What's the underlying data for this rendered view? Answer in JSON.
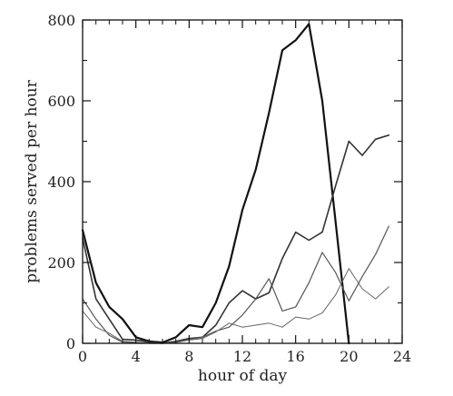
{
  "chart_data": {
    "type": "line",
    "xlabel": "hour of day",
    "ylabel": "problems served per hour",
    "xlim": [
      0,
      24
    ],
    "ylim": [
      0,
      800
    ],
    "x_ticks": [
      0,
      4,
      8,
      12,
      16,
      20,
      24
    ],
    "y_ticks": [
      0,
      200,
      400,
      600,
      800
    ],
    "x_tick_labels": [
      "0",
      "4",
      "8",
      "12",
      "16",
      "20",
      "24"
    ],
    "y_tick_labels": [
      "0",
      "200",
      "400",
      "600",
      "800"
    ],
    "grid": false,
    "legend": "none",
    "x": [
      0,
      1,
      2,
      3,
      4,
      5,
      6,
      7,
      8,
      9,
      10,
      11,
      12,
      13,
      14,
      15,
      16,
      17,
      18,
      19,
      20,
      21,
      22,
      23
    ],
    "series": [
      {
        "color": "#111111",
        "stroke_width": 2.2,
        "values": [
          280,
          150,
          90,
          60,
          15,
          5,
          2,
          15,
          45,
          40,
          100,
          190,
          330,
          430,
          570,
          725,
          750,
          790,
          600,
          300,
          0,
          null,
          null,
          null
        ]
      },
      {
        "color": "#333333",
        "stroke_width": 1.6,
        "values": [
          260,
          110,
          60,
          10,
          8,
          3,
          0,
          5,
          12,
          15,
          45,
          100,
          130,
          110,
          125,
          210,
          275,
          255,
          275,
          390,
          500,
          465,
          505,
          515
        ]
      },
      {
        "color": "#555555",
        "stroke_width": 1.2,
        "values": [
          110,
          60,
          20,
          3,
          2,
          0,
          0,
          2,
          10,
          15,
          30,
          40,
          70,
          110,
          160,
          80,
          90,
          150,
          225,
          175,
          105,
          165,
          220,
          290
        ]
      },
      {
        "color": "#666666",
        "stroke_width": 1.0,
        "values": [
          80,
          40,
          25,
          5,
          3,
          0,
          0,
          2,
          8,
          12,
          28,
          50,
          40,
          45,
          50,
          40,
          65,
          60,
          75,
          120,
          185,
          135,
          110,
          140
        ]
      }
    ]
  }
}
